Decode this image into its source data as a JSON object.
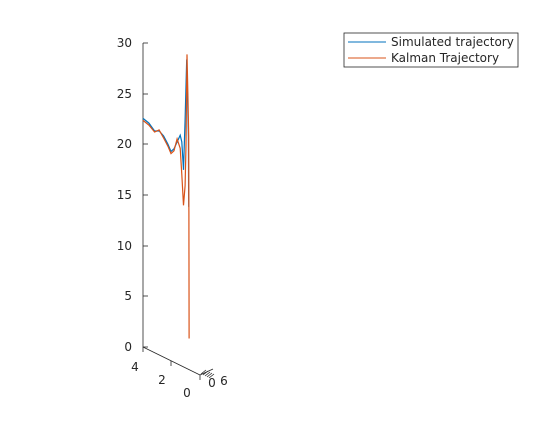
{
  "chart_data": {
    "type": "line",
    "projection": "3d",
    "title": "",
    "xlabel": "",
    "ylabel": "",
    "zlabel": "",
    "zlim": [
      0,
      30
    ],
    "z_ticks": [
      "0",
      "5",
      "10",
      "15",
      "20",
      "25",
      "30"
    ],
    "x_ticks": [
      "0",
      "2",
      "4"
    ],
    "y_ticks": [
      "0",
      "6"
    ],
    "grid": false,
    "legend": {
      "position": "top-right"
    },
    "series": [
      {
        "name": "Simulated trajectory",
        "color": "#0072bd",
        "points": [
          [
            4.0,
            0.0,
            19.8
          ],
          [
            3.6,
            0.1,
            19.6
          ],
          [
            3.2,
            0.1,
            19.1
          ],
          [
            2.9,
            0.2,
            19.3
          ],
          [
            2.6,
            0.3,
            19.0
          ],
          [
            2.3,
            0.3,
            18.4
          ],
          [
            2.1,
            0.4,
            17.8
          ],
          [
            1.9,
            0.5,
            18.2
          ],
          [
            1.7,
            0.6,
            19.0
          ],
          [
            1.5,
            0.7,
            19.8
          ],
          [
            1.4,
            0.8,
            19.2
          ],
          [
            1.3,
            0.9,
            16.5
          ],
          [
            1.2,
            1.0,
            21.5
          ],
          [
            1.1,
            1.1,
            27.5
          ],
          [
            1.0,
            1.2,
            20.0
          ],
          [
            1.0,
            1.3,
            15.0
          ],
          [
            1.0,
            1.4,
            13.0
          ]
        ]
      },
      {
        "name": "Kalman Trajectory",
        "color": "#d95319",
        "points": [
          [
            4.0,
            0.0,
            19.6
          ],
          [
            3.6,
            0.1,
            19.4
          ],
          [
            3.2,
            0.1,
            19.0
          ],
          [
            2.9,
            0.2,
            19.4
          ],
          [
            2.6,
            0.3,
            18.8
          ],
          [
            2.3,
            0.3,
            18.2
          ],
          [
            2.1,
            0.4,
            17.6
          ],
          [
            1.9,
            0.5,
            18.0
          ],
          [
            1.7,
            0.6,
            19.3
          ],
          [
            1.5,
            0.7,
            18.5
          ],
          [
            1.4,
            0.8,
            16.0
          ],
          [
            1.3,
            0.9,
            13.0
          ],
          [
            1.2,
            1.0,
            15.0
          ],
          [
            1.15,
            1.1,
            19.0
          ],
          [
            1.1,
            1.2,
            28.0
          ],
          [
            1.05,
            1.3,
            24.0
          ],
          [
            1.0,
            1.35,
            20.0
          ],
          [
            1.0,
            1.4,
            14.0
          ],
          [
            1.0,
            1.45,
            12.5
          ],
          [
            1.0,
            1.5,
            0.0
          ]
        ]
      }
    ]
  }
}
